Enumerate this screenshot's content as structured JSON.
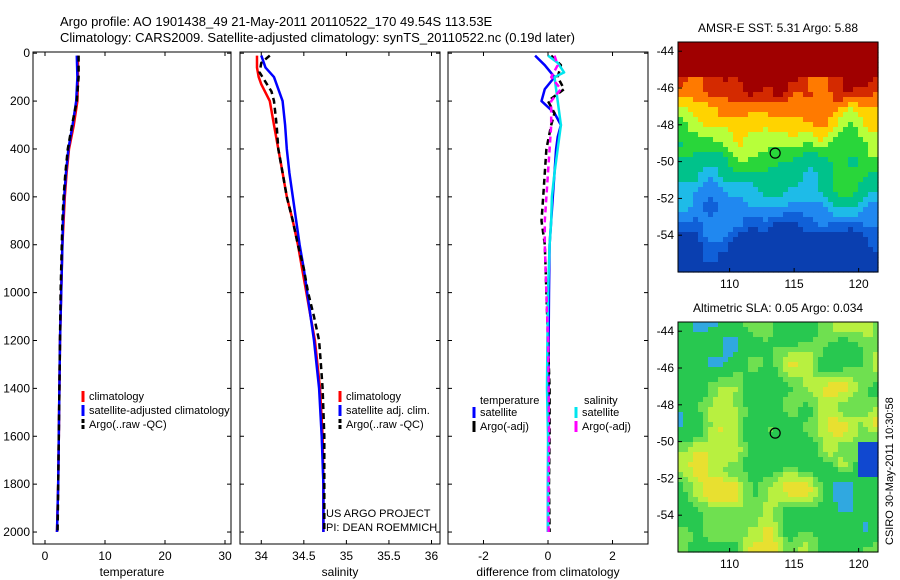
{
  "header": {
    "line1": "Argo profile: AO 1901438_49 21-May-2011 20110522_170 49.54S 113.53E",
    "line2": "Climatology: CARS2009. Satellite-adjusted climatology: synTS_20110522.nc (0.19d later)"
  },
  "side_label": "CSIRO 30-May-2011 10:30:58",
  "colors": {
    "climatology": "#ff0000",
    "satellite": "#0000ff",
    "argo": "#000000",
    "sal_satellite": "#00e5ee",
    "sal_argo": "#ff00ff"
  },
  "chart_data": [
    {
      "type": "line",
      "id": "temp",
      "xlabel": "temperature",
      "ylabel": "",
      "xlim": [
        -2,
        31
      ],
      "ylim": [
        2050,
        -5
      ],
      "xticks": [
        0,
        10,
        20,
        30
      ],
      "yticks": [
        0,
        200,
        400,
        600,
        800,
        1000,
        1200,
        1400,
        1600,
        1800,
        2000
      ],
      "series": [
        {
          "name": "climatology",
          "color": "#ff0000",
          "dash": "",
          "width": 2.5,
          "depth": [
            10,
            100,
            200,
            300,
            400,
            500,
            600,
            700,
            800,
            1000,
            1200,
            1400,
            1600,
            1800,
            2000
          ],
          "values": [
            5.5,
            5.5,
            5.4,
            4.8,
            4.0,
            3.6,
            3.3,
            3.1,
            2.9,
            2.7,
            2.5,
            2.4,
            2.3,
            2.2,
            2.0
          ]
        },
        {
          "name": "satellite-adjusted climatology",
          "color": "#0000ff",
          "dash": "",
          "width": 2.5,
          "depth": [
            10,
            100,
            200,
            300,
            400,
            500,
            600,
            700,
            800,
            1000,
            1200,
            1400,
            1600,
            1800,
            2000
          ],
          "values": [
            5.3,
            5.4,
            5.2,
            4.6,
            3.9,
            3.5,
            3.2,
            3.0,
            2.9,
            2.7,
            2.5,
            2.4,
            2.3,
            2.2,
            2.0
          ]
        },
        {
          "name": "Argo(..raw -QC)",
          "color": "#000000",
          "dash": "6,4",
          "width": 2.5,
          "depth": [
            10,
            100,
            200,
            300,
            400,
            500,
            600,
            700,
            800,
            1000,
            1200,
            1400,
            1600,
            1800,
            2000
          ],
          "values": [
            5.6,
            5.6,
            5.3,
            4.5,
            3.8,
            3.4,
            3.1,
            2.9,
            2.8,
            2.6,
            2.5,
            2.4,
            2.3,
            2.2,
            2.1
          ]
        }
      ],
      "legend": [
        "climatology",
        "satellite-adjusted climatology",
        "Argo(..raw -QC)"
      ]
    },
    {
      "type": "line",
      "id": "sal",
      "xlabel": "salinity",
      "ylabel": "",
      "xlim": [
        33.75,
        36.1
      ],
      "ylim": [
        2050,
        -5
      ],
      "xticks": [
        34,
        34.5,
        35,
        35.5,
        36
      ],
      "series": [
        {
          "name": "climatology",
          "color": "#ff0000",
          "dash": "",
          "width": 2.5,
          "depth": [
            10,
            60,
            100,
            130,
            200,
            300,
            400,
            500,
            600,
            700,
            800,
            900,
            1000,
            1100,
            1200,
            1400,
            1600,
            1800,
            2000
          ],
          "values": [
            33.95,
            33.95,
            33.97,
            34.0,
            34.1,
            34.15,
            34.2,
            34.25,
            34.3,
            34.37,
            34.43,
            34.48,
            34.53,
            34.58,
            34.63,
            34.69,
            34.72,
            34.73,
            34.73
          ]
        },
        {
          "name": "satellite adj. clim.",
          "color": "#0000ff",
          "dash": "",
          "width": 2.5,
          "depth": [
            10,
            60,
            100,
            150,
            200,
            300,
            400,
            500,
            600,
            700,
            800,
            900,
            1000,
            1100,
            1200,
            1400,
            1600,
            1800,
            2000
          ],
          "values": [
            34.0,
            34.05,
            34.15,
            34.2,
            34.25,
            34.28,
            34.3,
            34.33,
            34.37,
            34.41,
            34.45,
            34.5,
            34.54,
            34.58,
            34.62,
            34.68,
            34.71,
            34.73,
            34.73
          ]
        },
        {
          "name": "Argo(..raw -QC)",
          "color": "#000000",
          "dash": "6,4",
          "width": 2.5,
          "depth": [
            10,
            40,
            80,
            120,
            160,
            200,
            300,
            400,
            500,
            600,
            700,
            800,
            900,
            1000,
            1100,
            1200,
            1300,
            1400,
            1600,
            1800,
            2000
          ],
          "values": [
            34.1,
            34.0,
            33.98,
            34.05,
            34.12,
            34.15,
            34.18,
            34.2,
            34.25,
            34.3,
            34.37,
            34.43,
            34.5,
            34.55,
            34.62,
            34.68,
            34.7,
            34.72,
            34.74,
            34.74,
            34.74
          ]
        }
      ],
      "legend": [
        "climatology",
        "satellite adj. clim.",
        "Argo(..raw -QC)"
      ],
      "note_lines": [
        "US ARGO PROJECT",
        "PI: DEAN ROEMMICH"
      ]
    },
    {
      "type": "line",
      "id": "diff",
      "xlabel": "difference from climatology",
      "ylabel": "",
      "xlim": [
        -3.1,
        3.1
      ],
      "ylim": [
        2050,
        -5
      ],
      "xticks": [
        -2,
        0,
        2
      ],
      "series": [
        {
          "name": "temperature satellite",
          "color": "#0000ff",
          "dash": "",
          "width": 2.5,
          "depth": [
            10,
            50,
            100,
            150,
            200,
            250,
            300,
            350,
            400,
            500,
            600,
            700,
            800,
            1000,
            1200,
            1400,
            1600,
            1800,
            2000
          ],
          "values": [
            -0.4,
            -0.1,
            0.2,
            -0.1,
            -0.2,
            0.2,
            0.4,
            0.3,
            0.25,
            0.2,
            0.15,
            0.1,
            0.05,
            0.03,
            0.02,
            0.02,
            0.01,
            0.0,
            0.0
          ]
        },
        {
          "name": "temperature Argo(-adj)",
          "color": "#000000",
          "dash": "6,4",
          "width": 2.5,
          "depth": [
            10,
            50,
            100,
            150,
            200,
            250,
            300,
            400,
            500,
            600,
            700,
            800,
            1000,
            1200,
            1400,
            1600,
            1800,
            2000
          ],
          "values": [
            0.1,
            0.4,
            0.3,
            0.5,
            0.0,
            0.2,
            0.1,
            -0.05,
            -0.1,
            -0.15,
            -0.2,
            -0.1,
            -0.05,
            0.0,
            0.05,
            0.05,
            0.03,
            0.05
          ]
        },
        {
          "name": "salinity satellite",
          "color": "#00e5ee",
          "dash": "",
          "width": 2.5,
          "depth": [
            10,
            40,
            80,
            100,
            150,
            200,
            300,
            400,
            500,
            600,
            700,
            800,
            1000,
            1200,
            1400,
            1600,
            1800,
            2000
          ],
          "values": [
            0.0,
            0.3,
            0.5,
            0.2,
            0.25,
            0.3,
            0.4,
            0.3,
            0.2,
            0.12,
            0.1,
            0.05,
            0.0,
            -0.02,
            -0.03,
            0.0,
            0.0,
            0.0
          ]
        },
        {
          "name": "salinity Argo(-adj)",
          "color": "#ff00ff",
          "dash": "6,4",
          "width": 2.5,
          "depth": [
            10,
            50,
            100,
            150,
            200,
            300,
            400,
            500,
            600,
            700,
            800,
            1000,
            1200,
            1400,
            1600,
            1800,
            2000
          ],
          "values": [
            0.2,
            0.3,
            0.1,
            0.4,
            0.1,
            0.1,
            0.05,
            0.0,
            -0.05,
            -0.1,
            -0.1,
            -0.05,
            0.0,
            0.02,
            0.03,
            0.02,
            0.02
          ]
        }
      ],
      "legend_titles": [
        "temperature",
        "salinity"
      ],
      "legend_left": [
        "satellite",
        "Argo(-adj)"
      ],
      "legend_right": [
        "satellite",
        "Argo(-adj)"
      ]
    },
    {
      "type": "heatmap",
      "id": "sst",
      "title": "AMSR-E SST: 5.31 Argo: 5.88",
      "xlim": [
        106,
        121.5
      ],
      "ylim": [
        -56,
        -43.5
      ],
      "xticks": [
        110,
        115,
        120
      ],
      "yticks": [
        -44,
        -46,
        -48,
        -50,
        -52,
        -54
      ],
      "marker": {
        "lon": 113.53,
        "lat": -49.54
      },
      "colors": [
        "#a00000",
        "#d42a00",
        "#ff7a00",
        "#ffd300",
        "#b7ff3a",
        "#29d63a",
        "#00c28b",
        "#1ebbe8",
        "#2088f0",
        "#1060d8",
        "#0a3fb0"
      ]
    },
    {
      "type": "heatmap",
      "id": "sla",
      "title": "Altimetric SLA: 0.05 Argo: 0.034",
      "xlim": [
        106,
        121.5
      ],
      "ylim": [
        -56,
        -43.5
      ],
      "xticks": [
        110,
        115,
        120
      ],
      "yticks": [
        -44,
        -46,
        -48,
        -50,
        -52,
        -54
      ],
      "marker": {
        "lon": 113.53,
        "lat": -49.54
      },
      "colors": [
        "#28c850",
        "#6fe050",
        "#b8f040",
        "#e8e030",
        "#30a8e0",
        "#1048d0"
      ]
    }
  ]
}
